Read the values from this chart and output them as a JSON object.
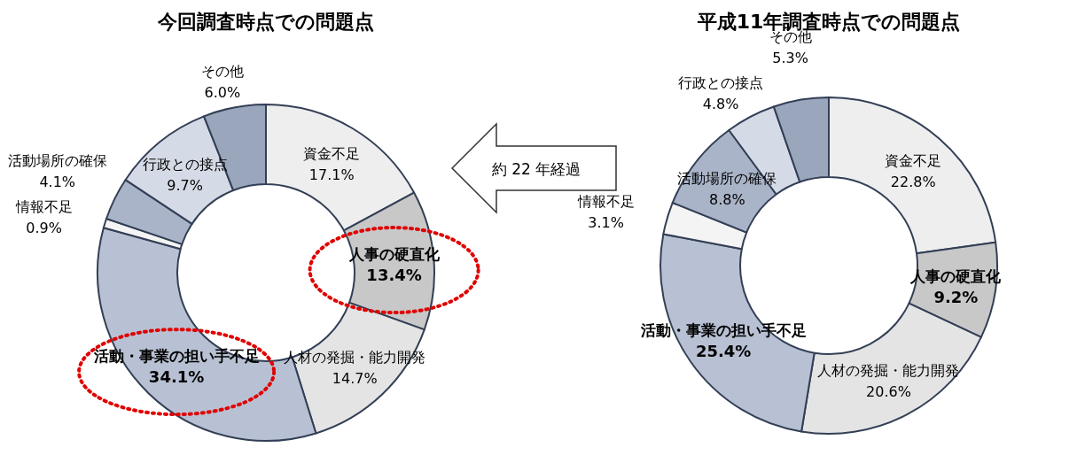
{
  "chart_data": [
    {
      "type": "donut",
      "title": "今回調査時点での問題点",
      "categories": [
        "資金不足",
        "人事の硬直化",
        "人材の発掘・能力開発",
        "活動・事業の担い手不足",
        "情報不足",
        "活動場所の確保",
        "行政との接点",
        "その他"
      ],
      "values": [
        17.1,
        13.4,
        14.7,
        34.1,
        0.9,
        4.1,
        9.7,
        6.0
      ],
      "colors": [
        "#eeeeee",
        "#c8c8c8",
        "#e4e4e4",
        "#b8c1d3",
        "#f4f4f4",
        "#a9b4c8",
        "#d5dbe6",
        "#9aa6bc"
      ],
      "value_labels": [
        "17.1%",
        "13.4%",
        "14.7%",
        "34.1%",
        "0.9%",
        "4.1%",
        "9.7%",
        "6.0%"
      ],
      "annotations": [
        "約 22 年経過"
      ]
    },
    {
      "type": "donut",
      "title": "平成11年調査時点での問題点",
      "categories": [
        "資金不足",
        "人事の硬直化",
        "人材の発掘・能力開発",
        "活動・事業の担い手不足",
        "情報不足",
        "活動場所の確保",
        "行政との接点",
        "その他"
      ],
      "values": [
        22.8,
        9.2,
        20.6,
        25.4,
        3.1,
        8.8,
        4.8,
        5.3
      ],
      "colors": [
        "#eeeeee",
        "#c8c8c8",
        "#e4e4e4",
        "#b8c1d3",
        "#f4f4f4",
        "#a9b4c8",
        "#d5dbe6",
        "#9aa6bc"
      ],
      "value_labels": [
        "22.8%",
        "9.2%",
        "20.6%",
        "25.4%",
        "3.1%",
        "8.8%",
        "4.8%",
        "5.3%"
      ]
    }
  ]
}
